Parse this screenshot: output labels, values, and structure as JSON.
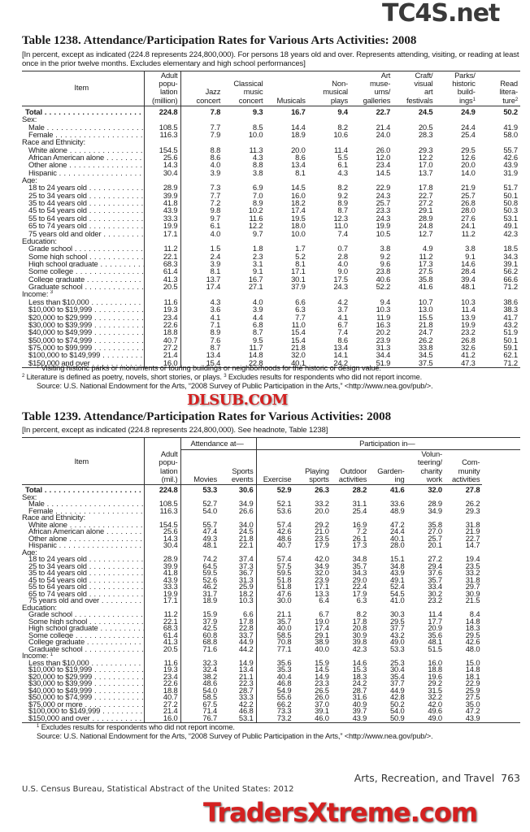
{
  "watermarks": {
    "top": "TC4S.net",
    "middle": "DLSUB.COM",
    "bottom": "TradersXtreme.com"
  },
  "table1": {
    "title": "Table 1238. Attendance/Participation Rates for Various Arts Activities: 2008",
    "subtitle": "[In percent, except as indicated (224.8 represents 224,800,000). For persons 18 years old and over. Represents attending, visiting, or reading at least once in the prior twelve months. Excludes elementary and high school performances]",
    "headers": {
      "item": "Item",
      "columns": [
        "Adult\npopu-\nlation\n(million)",
        "Jazz\nconcert",
        "Classical\nmusic\nconcert",
        "Musicals",
        "Non-\nmusical\nplays",
        "Art\nmuse-\nums/\ngalleries",
        "Craft/\nvisual\nart\nfestivals",
        "Parks/\nhistoric\nbuild-\nings",
        "Read\nlitera-\nture"
      ],
      "column_notes": [
        "",
        "",
        "",
        "",
        "",
        "",
        "",
        "1",
        "2"
      ]
    },
    "rows": [
      {
        "type": "total",
        "label": "Total",
        "values": [
          "224.8",
          "7.8",
          "9.3",
          "16.7",
          "9.4",
          "22.7",
          "24.5",
          "24.9",
          "50.2"
        ]
      },
      {
        "type": "section",
        "label": "Sex:"
      },
      {
        "type": "data",
        "label": "Male",
        "values": [
          "108.5",
          "7.7",
          "8.5",
          "14.4",
          "8.2",
          "21.4",
          "20.5",
          "24.4",
          "41.9"
        ]
      },
      {
        "type": "data",
        "label": "Female",
        "values": [
          "116.3",
          "7.9",
          "10.0",
          "18.9",
          "10.6",
          "24.0",
          "28.3",
          "25.4",
          "58.0"
        ]
      },
      {
        "type": "section",
        "label": "Race and Ethnicity:"
      },
      {
        "type": "data",
        "label": "White alone",
        "values": [
          "154.5",
          "8.8",
          "11.3",
          "20.0",
          "11.4",
          "26.0",
          "29.3",
          "29.5",
          "55.7"
        ]
      },
      {
        "type": "data",
        "label": "African American alone",
        "values": [
          "25.6",
          "8.6",
          "4.3",
          "8.6",
          "5.5",
          "12.0",
          "12.2",
          "12.6",
          "42.6"
        ]
      },
      {
        "type": "data",
        "label": "Other alone",
        "values": [
          "14.3",
          "4.0",
          "8.8",
          "13.4",
          "6.1",
          "23.4",
          "17.0",
          "20.0",
          "43.9"
        ]
      },
      {
        "type": "data",
        "label": "Hispanic",
        "values": [
          "30.4",
          "3.9",
          "3.8",
          "8.1",
          "4.3",
          "14.5",
          "13.7",
          "14.0",
          "31.9"
        ]
      },
      {
        "type": "section",
        "label": "Age:"
      },
      {
        "type": "data",
        "label": "18 to 24 years old",
        "values": [
          "28.9",
          "7.3",
          "6.9",
          "14.5",
          "8.2",
          "22.9",
          "17.8",
          "21.9",
          "51.7"
        ]
      },
      {
        "type": "data",
        "label": "25 to 34 years old",
        "values": [
          "39.9",
          "7.7",
          "7.0",
          "16.0",
          "9.2",
          "24.3",
          "22.7",
          "25.7",
          "50.1"
        ]
      },
      {
        "type": "data",
        "label": "35 to 44 years old",
        "values": [
          "41.8",
          "7.2",
          "8.9",
          "18.2",
          "8.9",
          "25.7",
          "27.2",
          "26.8",
          "50.8"
        ]
      },
      {
        "type": "data",
        "label": "45 to 54 years old",
        "values": [
          "43.9",
          "9.8",
          "10.2",
          "17.4",
          "8.7",
          "23.3",
          "29.1",
          "28.0",
          "50.3"
        ]
      },
      {
        "type": "data",
        "label": "55 to 64 years old",
        "values": [
          "33.3",
          "9.7",
          "11.6",
          "19.5",
          "12.3",
          "24.3",
          "28.9",
          "27.6",
          "53.1"
        ]
      },
      {
        "type": "data",
        "label": "65 to 74 years old",
        "values": [
          "19.9",
          "6.1",
          "12.2",
          "18.0",
          "11.0",
          "19.9",
          "24.8",
          "24.1",
          "49.1"
        ]
      },
      {
        "type": "data",
        "label": "75 years old and older",
        "values": [
          "17.1",
          "4.0",
          "9.7",
          "10.0",
          "7.4",
          "10.5",
          "12.7",
          "11.2",
          "42.3"
        ]
      },
      {
        "type": "section",
        "label": "Education:"
      },
      {
        "type": "data",
        "label": "Grade school",
        "values": [
          "11.2",
          "1.5",
          "1.8",
          "1.7",
          "0.7",
          "3.8",
          "4.9",
          "3.8",
          "18.5"
        ]
      },
      {
        "type": "data",
        "label": "Some high school",
        "values": [
          "22.1",
          "2.4",
          "2.3",
          "5.2",
          "2.8",
          "9.2",
          "11.2",
          "9.1",
          "34.3"
        ]
      },
      {
        "type": "data",
        "label": "High school graduate",
        "values": [
          "68.3",
          "3.9",
          "3.1",
          "8.1",
          "4.0",
          "9.6",
          "17.3",
          "14.6",
          "39.1"
        ]
      },
      {
        "type": "data",
        "label": "Some college",
        "values": [
          "61.4",
          "8.1",
          "9.1",
          "17.1",
          "9.0",
          "23.8",
          "27.5",
          "28.4",
          "56.2"
        ]
      },
      {
        "type": "data",
        "label": "College graduate",
        "values": [
          "41.3",
          "13.7",
          "16.7",
          "30.1",
          "17.5",
          "40.6",
          "35.8",
          "39.4",
          "66.6"
        ]
      },
      {
        "type": "data",
        "label": "Graduate school",
        "values": [
          "20.5",
          "17.4",
          "27.1",
          "37.9",
          "24.3",
          "52.2",
          "41.6",
          "48.1",
          "71.2"
        ]
      },
      {
        "type": "section",
        "label": "Income:",
        "note": "3"
      },
      {
        "type": "data",
        "label": "Less than $10,000",
        "values": [
          "11.6",
          "4.3",
          "4.0",
          "6.6",
          "4.2",
          "9.4",
          "10.7",
          "10.3",
          "38.6"
        ]
      },
      {
        "type": "data",
        "label": "$10,000 to $19,999",
        "values": [
          "19.3",
          "3.6",
          "3.9",
          "6.3",
          "3.7",
          "10.3",
          "13.0",
          "11.4",
          "38.3"
        ]
      },
      {
        "type": "data",
        "label": "$20,000 to $29,999",
        "values": [
          "23.4",
          "4.1",
          "4.4",
          "7.7",
          "4.1",
          "11.9",
          "15.5",
          "13.9",
          "41.7"
        ]
      },
      {
        "type": "data",
        "label": "$30,000 to $39,999",
        "values": [
          "22.6",
          "7.1",
          "6.8",
          "11.0",
          "6.7",
          "16.3",
          "21.8",
          "19.9",
          "43.2"
        ]
      },
      {
        "type": "data",
        "label": "$40,000 to $49,999",
        "values": [
          "18.8",
          "8.9",
          "8.7",
          "15.4",
          "7.4",
          "20.2",
          "24.7",
          "23.2",
          "51.9"
        ]
      },
      {
        "type": "data",
        "label": "$50,000 to $74,999",
        "values": [
          "40.7",
          "7.6",
          "9.5",
          "15.4",
          "8.6",
          "23.9",
          "26.2",
          "26.8",
          "50.1"
        ]
      },
      {
        "type": "data",
        "label": "$75,000 to $99,999",
        "values": [
          "27.2",
          "8.7",
          "11.7",
          "21.8",
          "13.4",
          "31.3",
          "33.8",
          "32.6",
          "59.1"
        ]
      },
      {
        "type": "data",
        "label": "$100,000 to $149,999",
        "values": [
          "21.4",
          "13.4",
          "14.8",
          "32.0",
          "14.1",
          "34.4",
          "34.5",
          "41.2",
          "62.1"
        ]
      },
      {
        "type": "data",
        "label": "$150,000 and over",
        "values": [
          "16.0",
          "15.4",
          "22.8",
          "40.1",
          "24.2",
          "51.9",
          "37.5",
          "47.3",
          "71.2"
        ]
      }
    ],
    "footnotes": [
      {
        "mark": "1",
        "text": "Visiting historic parks or monuments or touring buildings or neighborhoods for the historic or design value."
      },
      {
        "mark": "2",
        "text": "Literature is defined as poetry, novels, short stories, or plays."
      },
      {
        "mark": "3",
        "text": "Excludes results for respondents who did not report income."
      }
    ],
    "source": "Source: U.S. National Endowment for the Arts, “2008 Survey of Public Participation in the Arts,” <http://www.nea.gov/pub/>."
  },
  "table2": {
    "title": "Table 1239. Attendance/Participation Rates for Various Activities: 2008",
    "subtitle": "[In percent, except as indicated (224.8 represents 224,800,000). See headnote, Table 1238]",
    "headers": {
      "item": "Item",
      "groups": [
        "Attendance at—",
        "Participation in—"
      ],
      "columns": [
        "Adult\npopu-\nlation\n(mil.)",
        "Movies",
        "Sports\nevents",
        "Exercise",
        "Playing\nsports",
        "Outdoor\nactivities",
        "Garden-\ning",
        "Volun-\nteering/\ncharity\nwork",
        "Com-\nmunity\nactivities"
      ]
    },
    "rows": [
      {
        "type": "total",
        "label": "Total",
        "values": [
          "224.8",
          "53.3",
          "30.6",
          "52.9",
          "26.3",
          "28.2",
          "41.6",
          "32.0",
          "27.8"
        ]
      },
      {
        "type": "section",
        "label": "Sex:"
      },
      {
        "type": "data",
        "label": "Male",
        "values": [
          "108.5",
          "52.7",
          "34.9",
          "52.1",
          "33.2",
          "31.1",
          "33.6",
          "28.9",
          "26.2"
        ]
      },
      {
        "type": "data",
        "label": "Female",
        "values": [
          "116.3",
          "54.0",
          "26.6",
          "53.6",
          "20.0",
          "25.4",
          "48.9",
          "34.9",
          "29.3"
        ]
      },
      {
        "type": "section",
        "label": "Race and Ethnicity:"
      },
      {
        "type": "data",
        "label": "White alone",
        "values": [
          "154.5",
          "55.7",
          "34.0",
          "57.4",
          "29.2",
          "16.9",
          "47.2",
          "35.8",
          "31.8"
        ]
      },
      {
        "type": "data",
        "label": "African American alone",
        "values": [
          "25.6",
          "47.4",
          "24.5",
          "42.6",
          "21.0",
          "7.2",
          "24.4",
          "27.0",
          "21.9"
        ]
      },
      {
        "type": "data",
        "label": "Other alone",
        "values": [
          "14.3",
          "49.3",
          "21.8",
          "48.6",
          "23.5",
          "26.1",
          "40.1",
          "25.7",
          "22.7"
        ]
      },
      {
        "type": "data",
        "label": "Hispanic",
        "values": [
          "30.4",
          "48.1",
          "22.1",
          "40.7",
          "17.9",
          "17.3",
          "28.0",
          "20.1",
          "14.7"
        ]
      },
      {
        "type": "section",
        "label": "Age:"
      },
      {
        "type": "data",
        "label": "18 to 24 years old",
        "values": [
          "28.9",
          "74.2",
          "37.4",
          "57.4",
          "42.0",
          "34.8",
          "15.1",
          "27.2",
          "19.4"
        ]
      },
      {
        "type": "data",
        "label": "25 to 34 years old",
        "values": [
          "39.9",
          "64.5",
          "37.3",
          "57.5",
          "34.9",
          "35.7",
          "34.8",
          "29.4",
          "23.5"
        ]
      },
      {
        "type": "data",
        "label": "35 to 44 years old",
        "values": [
          "41.8",
          "59.5",
          "36.7",
          "59.5",
          "32.0",
          "34.3",
          "43.9",
          "37.6",
          "33.2"
        ]
      },
      {
        "type": "data",
        "label": "45 to 54 years old",
        "values": [
          "43.9",
          "52.6",
          "31.3",
          "51.8",
          "23.9",
          "29.0",
          "49.1",
          "35.7",
          "31.8"
        ]
      },
      {
        "type": "data",
        "label": "55 to 64 years old",
        "values": [
          "33.3",
          "46.2",
          "25.9",
          "51.8",
          "17.1",
          "22.4",
          "52.4",
          "33.4",
          "29.7"
        ]
      },
      {
        "type": "data",
        "label": "65 to 74 years old",
        "values": [
          "19.9",
          "31.7",
          "18.2",
          "47.6",
          "13.3",
          "17.9",
          "54.5",
          "30.2",
          "30.9"
        ]
      },
      {
        "type": "data",
        "label": "75 years old and over",
        "values": [
          "17.1",
          "18.9",
          "10.3",
          "30.0",
          "6.4",
          "6.3",
          "41.0",
          "23.2",
          "21.5"
        ]
      },
      {
        "type": "section",
        "label": "Education:"
      },
      {
        "type": "data",
        "label": "Grade school",
        "values": [
          "11.2",
          "15.9",
          "6.6",
          "21.1",
          "6.7",
          "8.2",
          "30.3",
          "11.4",
          "8.4"
        ]
      },
      {
        "type": "data",
        "label": "Some high school",
        "values": [
          "22.1",
          "37.9",
          "17.8",
          "35.7",
          "19.0",
          "17.8",
          "29.5",
          "17.7",
          "14.8"
        ]
      },
      {
        "type": "data",
        "label": "High school graduate",
        "values": [
          "68.3",
          "42.5",
          "22.8",
          "40.0",
          "17.4",
          "20.8",
          "37.7",
          "20.9",
          "18.3"
        ]
      },
      {
        "type": "data",
        "label": "Some college",
        "values": [
          "61.4",
          "60.8",
          "33.7",
          "58.5",
          "29.1",
          "30.9",
          "43.2",
          "35.6",
          "29.5"
        ]
      },
      {
        "type": "data",
        "label": "College graduate",
        "values": [
          "41.3",
          "68.8",
          "44.9",
          "70.8",
          "38.9",
          "39.8",
          "49.0",
          "48.1",
          "42.6"
        ]
      },
      {
        "type": "data",
        "label": "Graduate school",
        "values": [
          "20.5",
          "71.6",
          "44.2",
          "77.1",
          "40.0",
          "42.3",
          "53.3",
          "51.5",
          "48.0"
        ]
      },
      {
        "type": "section",
        "label": "Income:",
        "note": "1"
      },
      {
        "type": "data",
        "label": "Less than $10,000",
        "values": [
          "11.6",
          "32.3",
          "14.9",
          "35.6",
          "15.9",
          "14.6",
          "25.3",
          "16.0",
          "15.0"
        ]
      },
      {
        "type": "data",
        "label": "$10,000 to $19,999",
        "values": [
          "19.3",
          "32.4",
          "13.4",
          "35.3",
          "14.5",
          "15.3",
          "30.4",
          "18.8",
          "14.8"
        ]
      },
      {
        "type": "data",
        "label": "$20,000 to $29,999",
        "values": [
          "23.4",
          "38.2",
          "21.1",
          "40.4",
          "14.9",
          "18.3",
          "35.4",
          "19.6",
          "18.1"
        ]
      },
      {
        "type": "data",
        "label": "$30,000 to $39,999",
        "values": [
          "22.6",
          "48.6",
          "22.3",
          "46.8",
          "23.3",
          "24.2",
          "37.7",
          "29.2",
          "22.9"
        ]
      },
      {
        "type": "data",
        "label": "$40,000 to $49,999",
        "values": [
          "18.8",
          "54.0",
          "28.7",
          "54.9",
          "26.5",
          "28.7",
          "44.9",
          "31.5",
          "25.9"
        ]
      },
      {
        "type": "data",
        "label": "$50,000 to $74,999",
        "values": [
          "40.7",
          "58.5",
          "33.3",
          "55.6",
          "26.0",
          "31.6",
          "42.8",
          "32.2",
          "27.5"
        ]
      },
      {
        "type": "data",
        "label": "$75,000 or more",
        "values": [
          "27.2",
          "67.5",
          "42.2",
          "66.2",
          "37.0",
          "40.9",
          "50.2",
          "42.0",
          "35.0"
        ]
      },
      {
        "type": "data",
        "label": "$100,000 to $149,999",
        "values": [
          "21.4",
          "71.4",
          "46.8",
          "73.3",
          "39.1",
          "39.7",
          "54.0",
          "49.6",
          "47.2"
        ]
      },
      {
        "type": "data",
        "label": "$150,000 and over",
        "values": [
          "16.0",
          "76.7",
          "53.1",
          "73.2",
          "46.0",
          "43.9",
          "50.9",
          "49.0",
          "43.9"
        ]
      }
    ],
    "footnotes": [
      {
        "mark": "1",
        "text": "Excludes results for respondents who did not report income."
      }
    ],
    "source": "Source: U.S. National Endowment for the Arts, “2008 Survey of Public Participation in the Arts,” <http://www.nea.gov/pub/>."
  },
  "footer": {
    "section": "Arts, Recreation, and Travel",
    "page_number": "763",
    "publisher": "U.S. Census Bureau, Statistical Abstract of the United States: 2012"
  }
}
